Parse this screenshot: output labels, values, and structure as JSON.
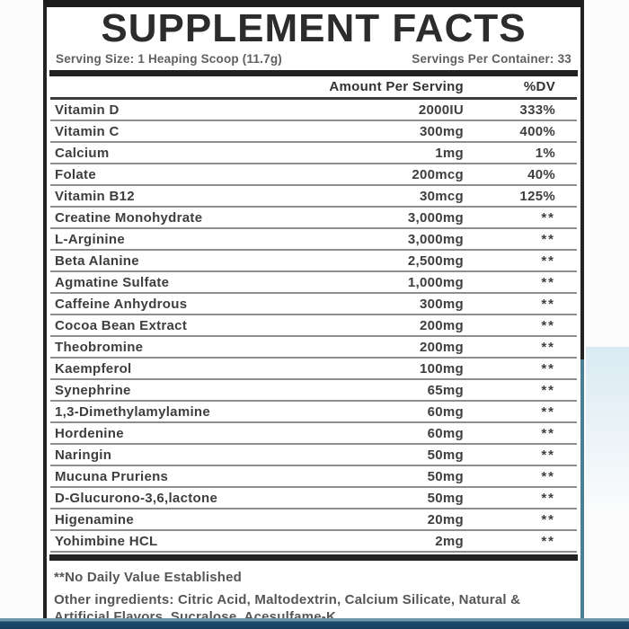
{
  "label": {
    "title": "SUPPLEMENT FACTS",
    "serving_size": "Serving Size: 1 Heaping Scoop (11.7g)",
    "servings_per_container": "Servings Per Container: 33",
    "columns": {
      "amount": "Amount Per Serving",
      "dv": "%DV"
    },
    "rows": [
      {
        "name": "Vitamin D",
        "amount": "2000IU",
        "dv": "333%"
      },
      {
        "name": "Vitamin C",
        "amount": "300mg",
        "dv": "400%"
      },
      {
        "name": "Calcium",
        "amount": "1mg",
        "dv": "1%"
      },
      {
        "name": "Folate",
        "amount": "200mcg",
        "dv": "40%"
      },
      {
        "name": "Vitamin B12",
        "amount": "30mcg",
        "dv": "125%"
      },
      {
        "name": "Creatine Monohydrate",
        "amount": "3,000mg",
        "dv": "**"
      },
      {
        "name": "L-Arginine",
        "amount": "3,000mg",
        "dv": "**"
      },
      {
        "name": "Beta Alanine",
        "amount": "2,500mg",
        "dv": "**"
      },
      {
        "name": "Agmatine Sulfate",
        "amount": "1,000mg",
        "dv": "**"
      },
      {
        "name": "Caffeine Anhydrous",
        "amount": "300mg",
        "dv": "**"
      },
      {
        "name": "Cocoa Bean Extract",
        "amount": "200mg",
        "dv": "**"
      },
      {
        "name": "Theobromine",
        "amount": "200mg",
        "dv": "**"
      },
      {
        "name": "Kaempferol",
        "amount": "100mg",
        "dv": "**"
      },
      {
        "name": "Synephrine",
        "amount": "65mg",
        "dv": "**"
      },
      {
        "name": "1,3-Dimethylamylamine",
        "amount": "60mg",
        "dv": "**"
      },
      {
        "name": "Hordenine",
        "amount": "60mg",
        "dv": "**"
      },
      {
        "name": "Naringin",
        "amount": "50mg",
        "dv": "**"
      },
      {
        "name": "Mucuna Pruriens",
        "amount": "50mg",
        "dv": "**"
      },
      {
        "name": "D-Glucurono-3,6,lactone",
        "amount": "50mg",
        "dv": "**"
      },
      {
        "name": "Higenamine",
        "amount": "20mg",
        "dv": "**"
      },
      {
        "name": "Yohimbine HCL",
        "amount": "2mg",
        "dv": "**"
      }
    ],
    "footnote": "**No Daily Value Established",
    "other_ingredients": "Other ingredients: Citric Acid, Maltodextrin, Calcium Silicate, Natural & Artificial Flavors, Sucralose, Acesulfame-K.",
    "colors": {
      "bar_black": "#222222",
      "row_line_gray": "#8d8d8d",
      "accent_teal": "#4b7f96",
      "bottom_bar_light": "#6e98ab",
      "bottom_bar_dark": "#1b4d70"
    }
  }
}
